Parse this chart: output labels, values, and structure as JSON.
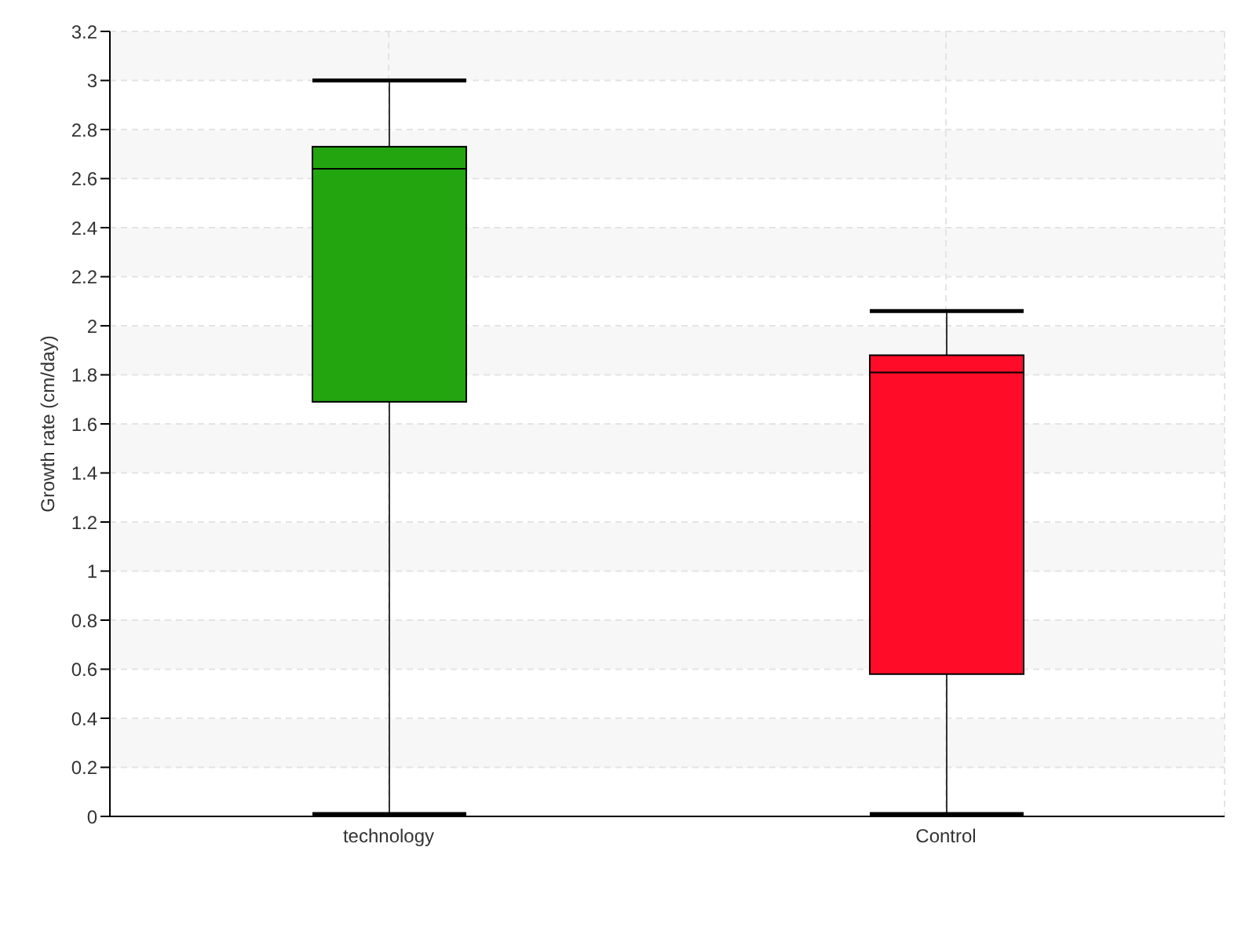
{
  "chart_data": {
    "type": "box",
    "ylabel": "Growth rate (cm/day)",
    "categories": [
      "technology",
      "Control"
    ],
    "colors": [
      "#22a50f",
      "#ff0c28"
    ],
    "boxes": [
      {
        "low": 0.01,
        "q1": 1.69,
        "median": 2.64,
        "q3": 2.73,
        "high": 3.0
      },
      {
        "low": 0.01,
        "q1": 0.58,
        "median": 1.81,
        "q3": 1.88,
        "high": 2.06
      }
    ],
    "ylim": [
      0,
      3.2
    ],
    "yticks": [
      0,
      0.2,
      0.4,
      0.6,
      0.8,
      1,
      1.2,
      1.4,
      1.6,
      1.8,
      2,
      2.2,
      2.4,
      2.6,
      2.8,
      3,
      3.2
    ],
    "grid": true
  }
}
